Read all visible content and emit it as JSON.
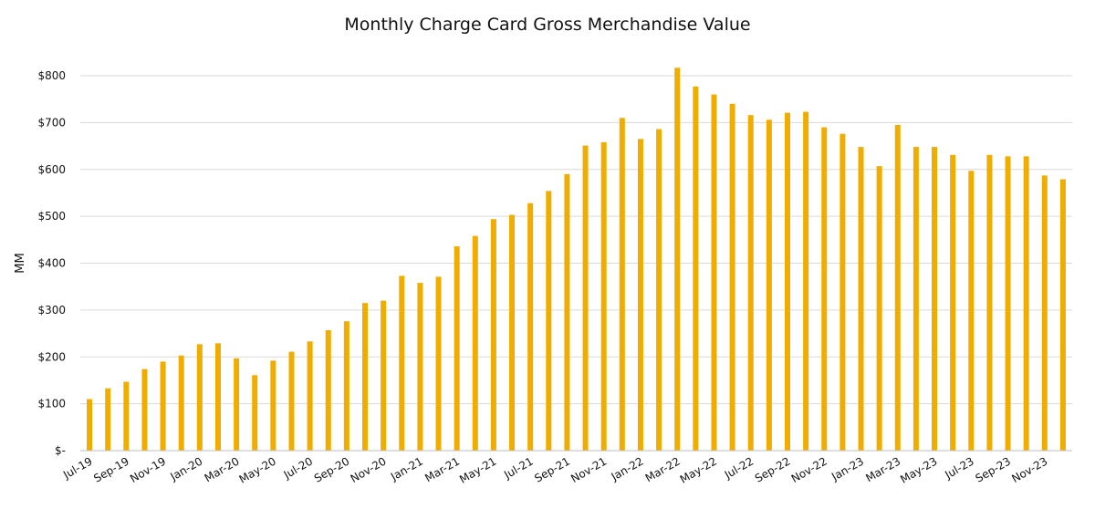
{
  "chart_data": {
    "type": "bar",
    "title": "Monthly Charge Card Gross Merchandise Value",
    "xlabel": "",
    "ylabel": "MM",
    "ylim": [
      0,
      800
    ],
    "grid": true,
    "bar_color": "#F0AD00",
    "grid_color": "#D9D9D9",
    "y_ticks": [
      0,
      100,
      200,
      300,
      400,
      500,
      600,
      700,
      800
    ],
    "y_tick_labels": [
      "$-",
      "$100",
      "$200",
      "$300",
      "$400",
      "$500",
      "$600",
      "$700",
      "$800"
    ],
    "categories": [
      "Jul-19",
      "Aug-19",
      "Sep-19",
      "Oct-19",
      "Nov-19",
      "Dec-19",
      "Jan-20",
      "Feb-20",
      "Mar-20",
      "Apr-20",
      "May-20",
      "Jun-20",
      "Jul-20",
      "Aug-20",
      "Sep-20",
      "Oct-20",
      "Nov-20",
      "Dec-20",
      "Jan-21",
      "Feb-21",
      "Mar-21",
      "Apr-21",
      "May-21",
      "Jun-21",
      "Jul-21",
      "Aug-21",
      "Sep-21",
      "Oct-21",
      "Nov-21",
      "Dec-21",
      "Jan-22",
      "Feb-22",
      "Mar-22",
      "Apr-22",
      "May-22",
      "Jun-22",
      "Jul-22",
      "Aug-22",
      "Sep-22",
      "Oct-22",
      "Nov-22",
      "Dec-22",
      "Jan-23",
      "Feb-23",
      "Mar-23",
      "Apr-23",
      "May-23",
      "Jun-23",
      "Jul-23",
      "Aug-23",
      "Sep-23",
      "Oct-23",
      "Nov-23",
      "Dec-23"
    ],
    "x_tick_labels": [
      "Jul-19",
      "Sep-19",
      "Nov-19",
      "Jan-20",
      "Mar-20",
      "May-20",
      "Jul-20",
      "Sep-20",
      "Nov-20",
      "Jan-21",
      "Mar-21",
      "May-21",
      "Jul-21",
      "Sep-21",
      "Nov-21",
      "Jan-22",
      "Mar-22",
      "May-22",
      "Jul-22",
      "Sep-22",
      "Nov-22",
      "Jan-23",
      "Mar-23",
      "May-23",
      "Jul-23",
      "Sep-23",
      "Nov-23"
    ],
    "values": [
      110,
      133,
      147,
      174,
      190,
      203,
      227,
      229,
      197,
      161,
      192,
      211,
      233,
      257,
      276,
      315,
      320,
      373,
      358,
      371,
      436,
      458,
      494,
      503,
      528,
      554,
      590,
      651,
      658,
      710,
      665,
      686,
      817,
      777,
      760,
      740,
      716,
      706,
      721,
      723,
      690,
      676,
      648,
      607,
      695,
      648,
      648,
      631,
      597,
      631,
      628,
      628,
      587,
      579
    ]
  }
}
